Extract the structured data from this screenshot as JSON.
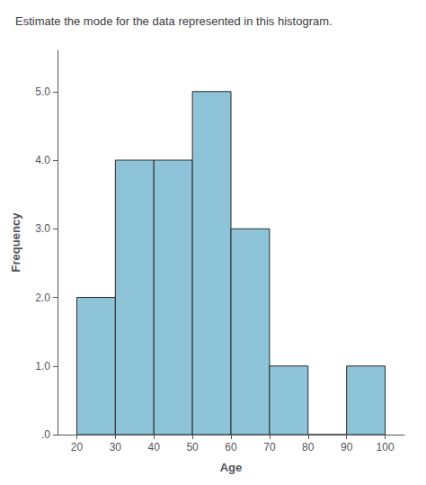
{
  "chart_data": {
    "type": "histogram",
    "title": "Estimate the mode for the data represented in this histogram.",
    "xlabel": "Age",
    "ylabel": "Frequency",
    "bins": [
      20,
      30,
      40,
      50,
      60,
      70,
      80,
      90,
      100
    ],
    "values": [
      2.0,
      4.0,
      4.0,
      5.0,
      3.0,
      1.0,
      0.0,
      1.0
    ],
    "color": "#8DC4DA",
    "xlim": [
      15,
      105
    ],
    "xticks": [
      20,
      30,
      40,
      50,
      60,
      70,
      80,
      90,
      100
    ],
    "ylim": [
      0,
      5.6
    ],
    "yticks": [
      {
        "value": 0.0,
        "label": ".0"
      },
      {
        "value": 1.0,
        "label": "1.0"
      },
      {
        "value": 2.0,
        "label": "2.0"
      },
      {
        "value": 3.0,
        "label": "3.0"
      },
      {
        "value": 4.0,
        "label": "4.0"
      },
      {
        "value": 5.0,
        "label": "5.0"
      }
    ],
    "grid": false
  }
}
